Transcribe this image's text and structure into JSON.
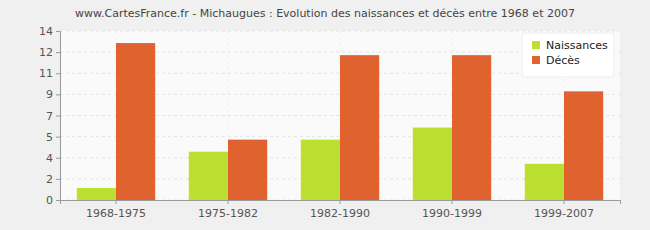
{
  "chart_data": {
    "type": "bar",
    "title": "www.CartesFrance.fr - Michaugues : Evolution des naissances et décès entre 1968 et 2007",
    "categories": [
      "1968-1975",
      "1975-1982",
      "1982-1990",
      "1990-1999",
      "1999-2007"
    ],
    "series": [
      {
        "name": "Naissances",
        "color": "#bbe030",
        "values": [
          1,
          4,
          5,
          6,
          3
        ]
      },
      {
        "name": "Décès",
        "color": "#e0632f",
        "values": [
          13,
          5,
          12,
          12,
          9
        ]
      }
    ],
    "ylim": [
      0,
      14
    ],
    "yticks": [
      0,
      {
        "value": 1.75,
        "label": "2"
      },
      {
        "value": 3.5,
        "label": "4"
      },
      {
        "value": 5.25,
        "label": "5"
      },
      7,
      {
        "value": 8.75,
        "label": "9"
      },
      {
        "value": 10.5,
        "label": "11"
      },
      {
        "value": 12.25,
        "label": "12"
      },
      14
    ],
    "grid": true,
    "legend": "top-right"
  }
}
